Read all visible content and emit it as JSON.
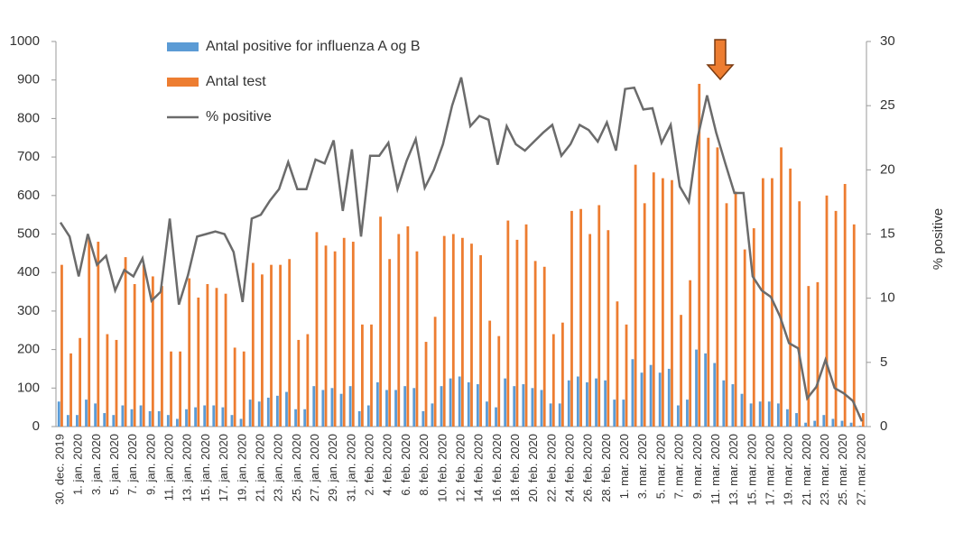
{
  "chart_data": {
    "type": "bar-line",
    "categories": [
      "30. dec. 2019",
      null,
      "1. jan. 2020",
      null,
      "3. jan. 2020",
      null,
      "5. jan. 2020",
      null,
      "7. jan. 2020",
      null,
      "9. jan. 2020",
      null,
      "11. jan. 2020",
      null,
      "13. jan. 2020",
      null,
      "15. jan. 2020",
      null,
      "17. jan. 2020",
      null,
      "19. jan. 2020",
      null,
      "21. jan. 2020",
      null,
      "23. jan. 2020",
      null,
      "25. jan. 2020",
      null,
      "27. jan. 2020",
      null,
      "29. jan. 2020",
      null,
      "31. jan. 2020",
      null,
      "2. feb. 2020",
      null,
      "4. feb. 2020",
      null,
      "6. feb. 2020",
      null,
      "8. feb. 2020",
      null,
      "10. feb. 2020",
      null,
      "12. feb. 2020",
      null,
      "14. feb. 2020",
      null,
      "16. feb. 2020",
      null,
      "18. feb. 2020",
      null,
      "20. feb. 2020",
      null,
      "22. feb. 2020",
      null,
      "24. feb. 2020",
      null,
      "26. feb. 2020",
      null,
      "28. feb. 2020",
      null,
      "1. mar. 2020",
      null,
      "3. mar. 2020",
      null,
      "5. mar. 2020",
      null,
      "7. mar. 2020",
      null,
      "9. mar. 2020",
      null,
      "11. mar. 2020",
      null,
      "13. mar. 2020",
      null,
      "15. mar. 2020",
      null,
      "17. mar. 2020",
      null,
      "19. mar. 2020",
      null,
      "21. mar. 2020",
      null,
      "23. mar. 2020",
      null,
      "25. mar. 2020",
      null,
      "27. mar. 2020"
    ],
    "series": [
      {
        "name": "Antal positive for influenza A og B",
        "color": "#5b9bd5",
        "values": [
          65,
          30,
          30,
          70,
          60,
          35,
          30,
          55,
          45,
          55,
          40,
          40,
          30,
          20,
          45,
          50,
          55,
          55,
          50,
          30,
          20,
          70,
          65,
          75,
          80,
          90,
          45,
          45,
          105,
          95,
          100,
          85,
          105,
          40,
          55,
          115,
          95,
          95,
          105,
          100,
          40,
          60,
          105,
          125,
          130,
          115,
          110,
          65,
          50,
          125,
          105,
          110,
          100,
          95,
          60,
          60,
          120,
          130,
          115,
          125,
          120,
          70,
          70,
          175,
          140,
          160,
          140,
          150,
          55,
          70,
          200,
          190,
          165,
          120,
          110,
          85,
          60,
          65,
          65,
          60,
          45,
          35,
          10,
          15,
          30,
          20,
          15,
          10,
          2
        ]
      },
      {
        "name": "Antal test",
        "color": "#ed7d31",
        "values": [
          420,
          190,
          230,
          490,
          480,
          240,
          225,
          440,
          370,
          420,
          390,
          365,
          195,
          195,
          385,
          335,
          370,
          360,
          345,
          205,
          195,
          425,
          395,
          420,
          420,
          435,
          225,
          240,
          505,
          470,
          455,
          490,
          480,
          265,
          265,
          545,
          435,
          500,
          520,
          455,
          220,
          285,
          495,
          500,
          490,
          475,
          445,
          275,
          235,
          535,
          485,
          525,
          430,
          415,
          240,
          270,
          560,
          565,
          500,
          575,
          510,
          325,
          265,
          680,
          580,
          660,
          645,
          640,
          290,
          380,
          890,
          750,
          725,
          580,
          610,
          460,
          515,
          645,
          645,
          725,
          670,
          585,
          365,
          375,
          600,
          560,
          630,
          525,
          35
        ]
      },
      {
        "name": "% positive",
        "color": "#6b6b6b",
        "axis": "y2",
        "values": [
          15.9,
          14.8,
          11.7,
          15,
          12.6,
          13.3,
          10.6,
          12.2,
          11.7,
          13.1,
          9.8,
          10.5,
          16.2,
          9.5,
          11.8,
          14.8,
          15,
          15.2,
          15,
          13.6,
          9.7,
          16.2,
          16.5,
          17.6,
          18.5,
          20.6,
          18.5,
          18.5,
          20.8,
          20.5,
          22.3,
          16.8,
          21.6,
          14.8,
          21.1,
          21.1,
          22.1,
          18.5,
          20.7,
          22.4,
          18.6,
          20,
          22,
          25,
          27.2,
          23.4,
          24.2,
          23.9,
          20.4,
          23.4,
          22,
          21.5,
          22.2,
          22.9,
          23.5,
          21.1,
          22,
          23.5,
          23.1,
          22.2,
          23.7,
          21.5,
          26.3,
          26.4,
          24.7,
          24.8,
          22.1,
          23.5,
          18.7,
          17.5,
          22.6,
          25.8,
          22.9,
          20.5,
          18.2,
          18.2,
          11.7,
          10.6,
          10.1,
          8.6,
          6.5,
          6.1,
          2.2,
          3.1,
          5.2,
          3,
          2.6,
          2,
          0.4
        ]
      }
    ],
    "ylim": [
      0,
      1000
    ],
    "yticks": [
      0,
      100,
      200,
      300,
      400,
      500,
      600,
      700,
      800,
      900,
      1000
    ],
    "y2lim": [
      0,
      30
    ],
    "y2ticks": [
      0,
      5,
      10,
      15,
      20,
      25,
      30
    ],
    "y2label": "% positive"
  }
}
